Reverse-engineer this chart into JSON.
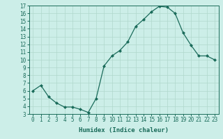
{
  "x": [
    0,
    1,
    2,
    3,
    4,
    5,
    6,
    7,
    8,
    9,
    10,
    11,
    12,
    13,
    14,
    15,
    16,
    17,
    18,
    19,
    20,
    21,
    22,
    23
  ],
  "y": [
    6.0,
    6.7,
    5.2,
    4.4,
    3.9,
    3.9,
    3.6,
    3.2,
    5.0,
    9.2,
    10.5,
    11.2,
    12.3,
    14.3,
    15.2,
    16.2,
    16.9,
    16.8,
    16.0,
    13.5,
    11.9,
    10.5,
    10.5,
    10.0
  ],
  "line_color": "#1a6b5a",
  "marker": "D",
  "marker_size": 2.0,
  "bg_color": "#cceee8",
  "grid_color": "#b0d8cc",
  "xlabel": "Humidex (Indice chaleur)",
  "xlim": [
    -0.5,
    23.5
  ],
  "ylim": [
    3,
    17
  ],
  "yticks": [
    3,
    4,
    5,
    6,
    7,
    8,
    9,
    10,
    11,
    12,
    13,
    14,
    15,
    16,
    17
  ],
  "xticks": [
    0,
    1,
    2,
    3,
    4,
    5,
    6,
    7,
    8,
    9,
    10,
    11,
    12,
    13,
    14,
    15,
    16,
    17,
    18,
    19,
    20,
    21,
    22,
    23
  ],
  "label_fontsize": 6.5,
  "tick_fontsize": 5.5
}
